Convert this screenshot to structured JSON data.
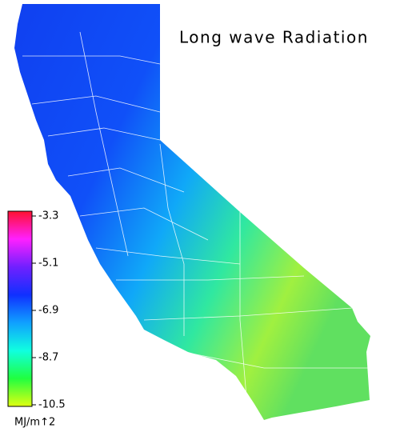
{
  "title": "Long wave Radiation",
  "colorbar": {
    "lim": [
      -3.3,
      -10.5
    ],
    "ticks": [
      -3.3,
      -5.1,
      -6.9,
      -8.7,
      -10.5
    ],
    "unit": "MJ/m↑2",
    "colors": [
      "#ff1030",
      "#ff20ff",
      "#7020ff",
      "#1030ff",
      "#10a0ff",
      "#10ffe0",
      "#20ff40",
      "#e0ff10"
    ]
  }
}
